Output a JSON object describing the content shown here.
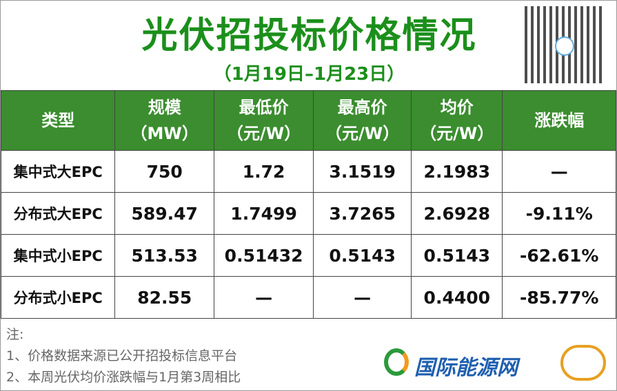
{
  "header": {
    "title": "光伏招投标价格情况",
    "subtitle": "（1月19日–1月23日）"
  },
  "table": {
    "headers": [
      [
        "类型"
      ],
      [
        "规模",
        "（MW）"
      ],
      [
        "最低价",
        "（元/W）"
      ],
      [
        "最高价",
        "（元/W）"
      ],
      [
        "均价",
        "（元/W）"
      ],
      [
        "涨跌幅"
      ]
    ],
    "rows": [
      [
        "集中式大EPC",
        "750",
        "1.72",
        "3.1519",
        "2.1983",
        "—"
      ],
      [
        "分布式大EPC",
        "589.47",
        "1.7499",
        "3.7265",
        "2.6928",
        "-9.11%"
      ],
      [
        "集中式小EPC",
        "513.53",
        "0.51432",
        "0.5143",
        "0.5143",
        "-62.61%"
      ],
      [
        "分布式小EPC",
        "82.55",
        "—",
        "—",
        "0.4400",
        "-85.77%"
      ]
    ]
  },
  "notes": [
    "注:",
    "1、价格数据来源已公开招投标信息平台",
    "2、本周光伏均价涨跌幅与1月第3周相比"
  ],
  "logo": "国际能源网"
}
